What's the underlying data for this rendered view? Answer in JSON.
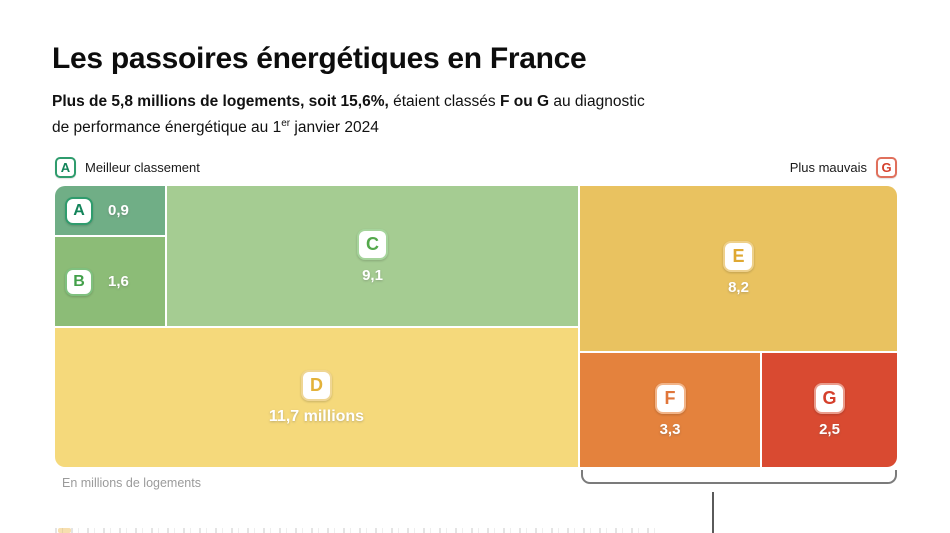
{
  "title": "Les passoires énergétiques en France",
  "subtitle": {
    "line1_bold": "Plus de 5,8 millions de logements, soit 15,6%,",
    "line1_normal": " étaient classés ",
    "line1_bold2": "F ou G",
    "line1_normal2": " au diagnostic",
    "line2_part1": "de performance énergétique au 1",
    "line2_sup": "er",
    "line2_part2": " janvier 2024"
  },
  "legend": {
    "left": {
      "badge": "A",
      "label": "Meilleur classement"
    },
    "right": {
      "label": "Plus mauvais",
      "badge": "G"
    }
  },
  "blocks": {
    "a": {
      "letter": "A",
      "value": "0,9"
    },
    "b": {
      "letter": "B",
      "value": "1,6"
    },
    "c": {
      "letter": "C",
      "value": "9,1"
    },
    "d": {
      "letter": "D",
      "value": "11,7 millions"
    },
    "e": {
      "letter": "E",
      "value": "8,2"
    },
    "f": {
      "letter": "F",
      "value": "3,3"
    },
    "g": {
      "letter": "G",
      "value": "2,5"
    }
  },
  "footnote": "En millions de logements",
  "chart_data": {
    "type": "treemap",
    "title": "Les passoires énergétiques en France",
    "subtitle": "Plus de 5,8 millions de logements, soit 15,6%, étaient classés F ou G au diagnostic de performance énergétique au 1er janvier 2024",
    "unit": "millions de logements",
    "categories": [
      "A",
      "B",
      "C",
      "D",
      "E",
      "F",
      "G"
    ],
    "values": [
      0.9,
      1.6,
      9.1,
      11.7,
      8.2,
      3.3,
      2.5
    ],
    "value_labels": [
      "0,9",
      "1,6",
      "9,1",
      "11,7 millions",
      "8,2",
      "3,3",
      "2,5"
    ],
    "colors": {
      "A": "#70ae86",
      "B": "#8cbc77",
      "C": "#a5cc92",
      "D": "#f5d97b",
      "E": "#e9c260",
      "F": "#e4823d",
      "G": "#d94a31"
    },
    "scale_note_best": "Meilleur classement",
    "scale_note_worst": "Plus mauvais",
    "highlighted_group": [
      "F",
      "G"
    ],
    "note": "En millions de logements"
  }
}
